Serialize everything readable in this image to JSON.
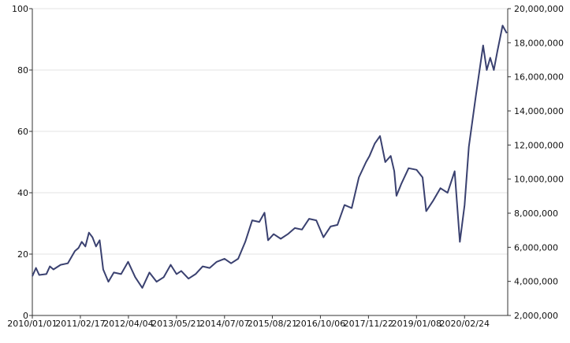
{
  "chart_data": {
    "type": "line",
    "title": "",
    "xlabel": "",
    "ylabel": "",
    "y2label": "",
    "grid": true,
    "legend": "none",
    "line_color": "#3a4170",
    "ylim": [
      0,
      100
    ],
    "y_ticks": [
      0,
      20,
      40,
      60,
      80,
      100
    ],
    "y2lim": [
      2000000,
      20000000
    ],
    "y2_ticks": [
      "2,000,000",
      "4,000,000",
      "6,000,000",
      "8,000,000",
      "10,000,000",
      "12,000,000",
      "14,000,000",
      "16,000,000",
      "18,000,000",
      "20,000,000"
    ],
    "x_ticks": [
      "2010/01/01",
      "2011/02/17",
      "2012/04/04",
      "2013/05/21",
      "2014/07/07",
      "2015/08/21",
      "2016/10/06",
      "2017/11/22",
      "2019/01/08",
      "2020/02/24"
    ],
    "x_range": [
      "2010/01/01",
      "2021/02/28"
    ],
    "series": [
      {
        "points": [
          [
            "2010/01/01",
            12.8
          ],
          [
            "2010/02/01",
            15.5
          ],
          [
            "2010/03/01",
            13.2
          ],
          [
            "2010/05/01",
            13.5
          ],
          [
            "2010/06/01",
            16.0
          ],
          [
            "2010/07/01",
            15.0
          ],
          [
            "2010/09/01",
            16.5
          ],
          [
            "2010/11/01",
            17.0
          ],
          [
            "2011/01/01",
            21.0
          ],
          [
            "2011/02/01",
            22.0
          ],
          [
            "2011/03/01",
            24.0
          ],
          [
            "2011/04/01",
            22.5
          ],
          [
            "2011/05/01",
            27.0
          ],
          [
            "2011/06/01",
            25.5
          ],
          [
            "2011/07/01",
            22.5
          ],
          [
            "2011/08/01",
            24.5
          ],
          [
            "2011/09/01",
            15.0
          ],
          [
            "2011/10/15",
            11.0
          ],
          [
            "2011/12/01",
            14.0
          ],
          [
            "2012/02/01",
            13.5
          ],
          [
            "2012/04/01",
            17.5
          ],
          [
            "2012/06/01",
            12.5
          ],
          [
            "2012/08/01",
            9.0
          ],
          [
            "2012/10/01",
            14.0
          ],
          [
            "2012/12/01",
            11.0
          ],
          [
            "2013/02/01",
            12.5
          ],
          [
            "2013/04/01",
            16.5
          ],
          [
            "2013/05/21",
            13.5
          ],
          [
            "2013/07/01",
            14.5
          ],
          [
            "2013/09/01",
            12.0
          ],
          [
            "2013/11/01",
            13.5
          ],
          [
            "2014/01/01",
            16.0
          ],
          [
            "2014/03/01",
            15.5
          ],
          [
            "2014/05/01",
            17.5
          ],
          [
            "2014/07/07",
            18.5
          ],
          [
            "2014/09/01",
            17.0
          ],
          [
            "2014/11/01",
            18.5
          ],
          [
            "2015/01/01",
            24.0
          ],
          [
            "2015/03/01",
            31.0
          ],
          [
            "2015/05/01",
            30.5
          ],
          [
            "2015/06/15",
            33.5
          ],
          [
            "2015/07/15",
            24.5
          ],
          [
            "2015/09/01",
            26.5
          ],
          [
            "2015/11/01",
            25.0
          ],
          [
            "2016/01/01",
            26.5
          ],
          [
            "2016/03/01",
            28.5
          ],
          [
            "2016/05/01",
            28.0
          ],
          [
            "2016/07/01",
            31.5
          ],
          [
            "2016/09/01",
            31.0
          ],
          [
            "2016/11/01",
            25.5
          ],
          [
            "2017/01/01",
            29.0
          ],
          [
            "2017/03/01",
            29.5
          ],
          [
            "2017/05/01",
            36.0
          ],
          [
            "2017/07/01",
            35.0
          ],
          [
            "2017/09/01",
            45.0
          ],
          [
            "2017/11/01",
            50.0
          ],
          [
            "2017/12/01",
            52.0
          ],
          [
            "2018/01/15",
            56.0
          ],
          [
            "2018/03/01",
            58.5
          ],
          [
            "2018/04/15",
            50.0
          ],
          [
            "2018/06/01",
            52.0
          ],
          [
            "2018/07/01",
            47.0
          ],
          [
            "2018/07/20",
            39.0
          ],
          [
            "2018/09/01",
            43.0
          ],
          [
            "2018/11/01",
            48.0
          ],
          [
            "2019/01/08",
            47.5
          ],
          [
            "2019/03/01",
            45.0
          ],
          [
            "2019/04/01",
            34.0
          ],
          [
            "2019/06/01",
            37.5
          ],
          [
            "2019/08/01",
            41.5
          ],
          [
            "2019/10/01",
            40.0
          ],
          [
            "2019/12/01",
            47.0
          ],
          [
            "2020/01/15",
            24.0
          ],
          [
            "2020/02/24",
            36.0
          ],
          [
            "2020/04/01",
            55.0
          ],
          [
            "2020/06/01",
            72.0
          ],
          [
            "2020/08/01",
            88.0
          ],
          [
            "2020/09/01",
            80.0
          ],
          [
            "2020/10/01",
            84.0
          ],
          [
            "2020/11/01",
            80.0
          ],
          [
            "2020/12/01",
            86.0
          ],
          [
            "2021/01/15",
            94.5
          ],
          [
            "2021/02/20",
            92.0
          ]
        ]
      }
    ]
  }
}
